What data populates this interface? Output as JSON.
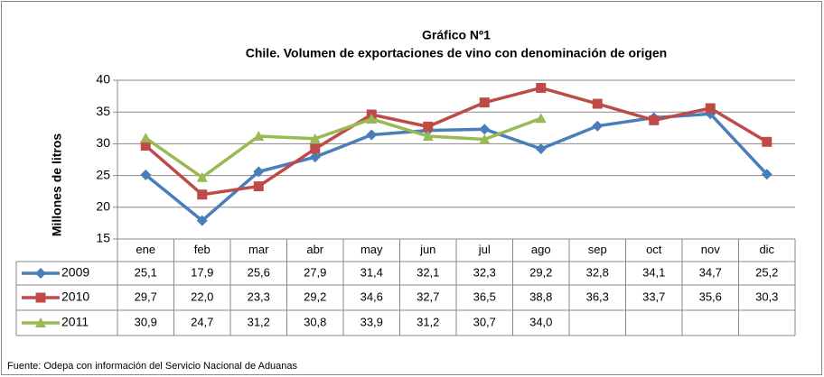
{
  "chart_data": {
    "type": "line",
    "title": "Gráfico Nº1",
    "subtitle": "Chile. Volumen de exportaciones de vino con denominación de origen",
    "y_label": "Millones de litros",
    "source": "Fuente: Odepa con información del Servicio Nacional de Aduanas",
    "categories": [
      "ene",
      "feb",
      "mar",
      "abr",
      "may",
      "jun",
      "jul",
      "ago",
      "sep",
      "oct",
      "nov",
      "dic"
    ],
    "series": [
      {
        "name": "2009",
        "color": "#4a7ebb",
        "marker": "diamond",
        "values": [
          25.1,
          17.9,
          25.6,
          27.9,
          31.4,
          32.1,
          32.3,
          29.2,
          32.8,
          34.1,
          34.7,
          25.2
        ],
        "value_labels": [
          "25,1",
          "17,9",
          "25,6",
          "27,9",
          "31,4",
          "32,1",
          "32,3",
          "29,2",
          "32,8",
          "34,1",
          "34,7",
          "25,2"
        ]
      },
      {
        "name": "2010",
        "color": "#be4b48",
        "marker": "square",
        "values": [
          29.7,
          22.0,
          23.3,
          29.2,
          34.6,
          32.7,
          36.5,
          38.8,
          36.3,
          33.7,
          35.6,
          30.3
        ],
        "value_labels": [
          "29,7",
          "22,0",
          "23,3",
          "29,2",
          "34,6",
          "32,7",
          "36,5",
          "38,8",
          "36,3",
          "33,7",
          "35,6",
          "30,3"
        ]
      },
      {
        "name": "2011",
        "color": "#98b954",
        "marker": "triangle",
        "values": [
          30.9,
          24.7,
          31.2,
          30.8,
          33.9,
          31.2,
          30.7,
          34.0,
          null,
          null,
          null,
          null
        ],
        "value_labels": [
          "30,9",
          "24,7",
          "31,2",
          "30,8",
          "33,9",
          "31,2",
          "30,7",
          "34,0",
          null,
          null,
          null,
          null
        ]
      }
    ],
    "ylim": [
      15,
      40
    ],
    "yticks": [
      15,
      20,
      25,
      30,
      35,
      40
    ],
    "grid": true
  }
}
